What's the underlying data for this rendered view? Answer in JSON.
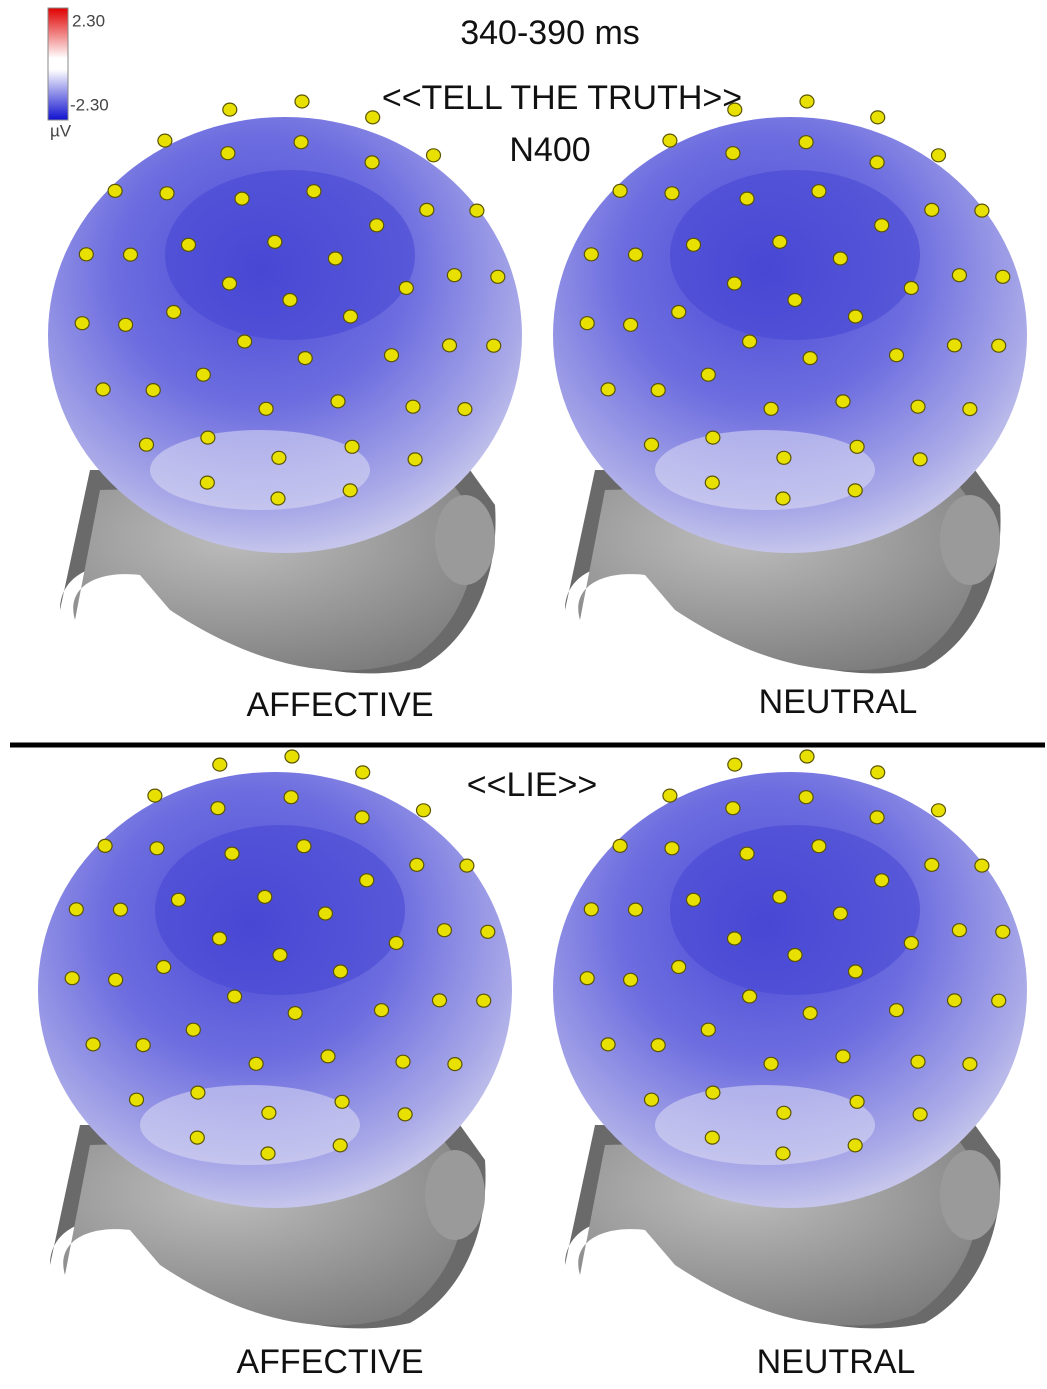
{
  "colorbar": {
    "max": "2.30",
    "min": "-2.30",
    "unit": "µV"
  },
  "header": {
    "time": "340-390 ms",
    "condition": "<<TELL THE TRUTH>>",
    "component": "N400"
  },
  "top": {
    "labels": [
      "AFFECTIVE",
      "NEUTRAL"
    ]
  },
  "bottom": {
    "condition": "<<LIE>>",
    "labels": [
      "AFFECTIVE",
      "NEUTRAL"
    ]
  }
}
